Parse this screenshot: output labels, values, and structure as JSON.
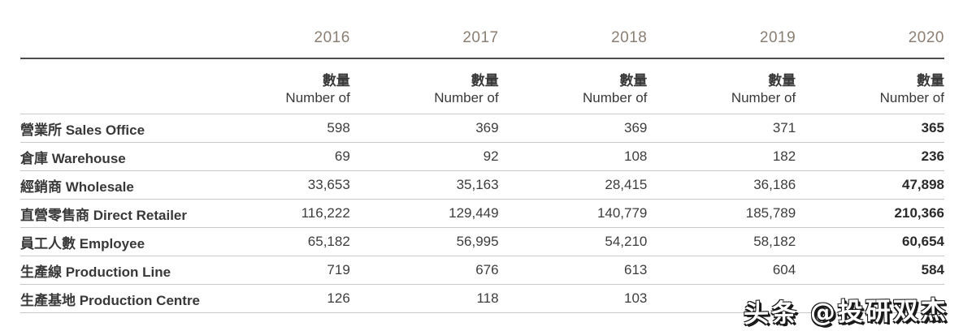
{
  "table": {
    "years": [
      "2016",
      "2017",
      "2018",
      "2019",
      "2020"
    ],
    "subheader": {
      "zh": "數量",
      "en": "Number of"
    },
    "rows": [
      {
        "label": "營業所 Sales Office",
        "values": [
          "598",
          "369",
          "369",
          "371",
          "365"
        ]
      },
      {
        "label": "倉庫 Warehouse",
        "values": [
          "69",
          "92",
          "108",
          "182",
          "236"
        ]
      },
      {
        "label": "經銷商 Wholesale",
        "values": [
          "33,653",
          "35,163",
          "28,415",
          "36,186",
          "47,898"
        ]
      },
      {
        "label": "直營零售商 Direct Retailer",
        "values": [
          "116,222",
          "129,449",
          "140,779",
          "185,789",
          "210,366"
        ]
      },
      {
        "label": "員工人數 Employee",
        "values": [
          "65,182",
          "56,995",
          "54,210",
          "58,182",
          "60,654"
        ]
      },
      {
        "label": "生產線 Production Line",
        "values": [
          "719",
          "676",
          "613",
          "604",
          "584"
        ]
      },
      {
        "label": "生產基地 Production Centre",
        "values": [
          "126",
          "118",
          "103",
          "",
          ""
        ]
      }
    ]
  },
  "chart_data": {
    "type": "table",
    "title": "",
    "categories": [
      "2016",
      "2017",
      "2018",
      "2019",
      "2020"
    ],
    "series": [
      {
        "name": "營業所 Sales Office",
        "values": [
          598,
          369,
          369,
          371,
          365
        ]
      },
      {
        "name": "倉庫 Warehouse",
        "values": [
          69,
          92,
          108,
          182,
          236
        ]
      },
      {
        "name": "經銷商 Wholesale",
        "values": [
          33653,
          35163,
          28415,
          36186,
          47898
        ]
      },
      {
        "name": "直營零售商 Direct Retailer",
        "values": [
          116222,
          129449,
          140779,
          185789,
          210366
        ]
      },
      {
        "name": "員工人數 Employee",
        "values": [
          65182,
          56995,
          54210,
          58182,
          60654
        ]
      },
      {
        "name": "生產線 Production Line",
        "values": [
          719,
          676,
          613,
          604,
          584
        ]
      },
      {
        "name": "生產基地 Production Centre",
        "values": [
          126,
          118,
          103,
          null,
          null
        ]
      }
    ]
  },
  "watermark": {
    "text": "头条 @投研双杰"
  },
  "colors": {
    "year_text": "#8b7e72",
    "body_text": "#383838",
    "header_rule": "#4c4c4c",
    "row_rule": "#c7c7c7",
    "background": "#ffffff"
  }
}
